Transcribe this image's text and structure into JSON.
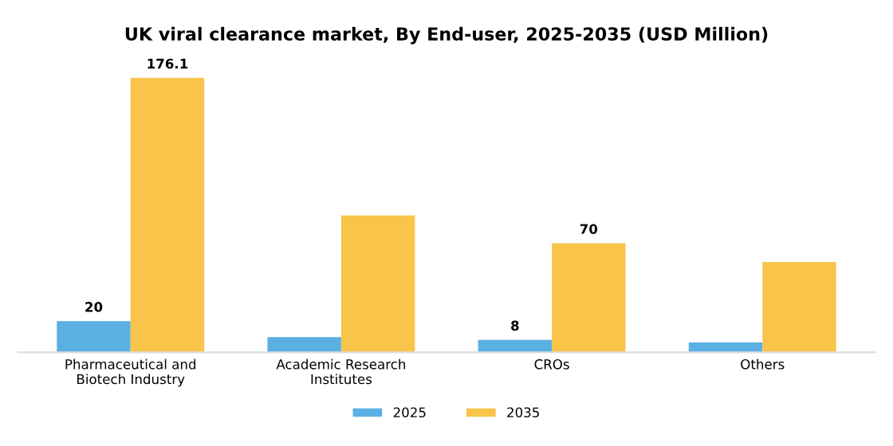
{
  "chart_data": {
    "type": "bar",
    "title": "UK viral clearance market, By End-user, 2025-2035 (USD Million)",
    "categories": [
      "Pharmaceutical and\nBiotech Industry",
      "Academic Research\nInstitutes",
      "CROs",
      "Others"
    ],
    "series": [
      {
        "name": "2025",
        "color": "#5aafe3",
        "values": [
          20,
          9.8,
          8,
          6.3
        ],
        "value_labels": [
          "20",
          null,
          "8",
          null
        ]
      },
      {
        "name": "2035",
        "color": "#f8c44a",
        "values": [
          176.1,
          87.9,
          70,
          57.9
        ],
        "value_labels": [
          "176.1",
          null,
          "70",
          null
        ]
      }
    ],
    "legend": "bottom",
    "grid": false
  }
}
